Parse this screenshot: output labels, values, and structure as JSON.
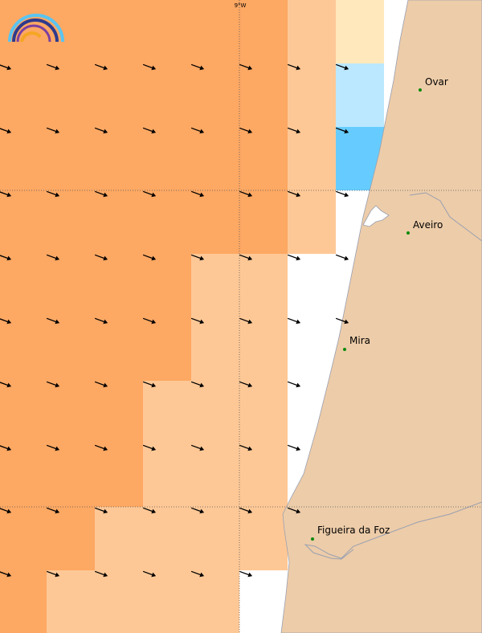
{
  "map": {
    "grid_label": "9°W",
    "cities": [
      {
        "name": "Ovar"
      },
      {
        "name": "Aveiro"
      },
      {
        "name": "Mira"
      },
      {
        "name": "Figueira da Foz"
      }
    ]
  }
}
